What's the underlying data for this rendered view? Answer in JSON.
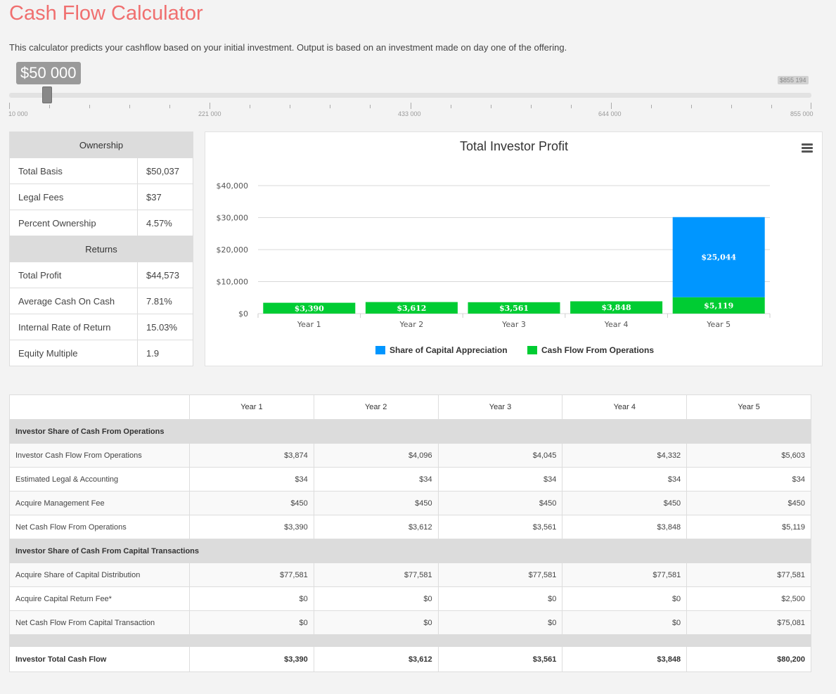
{
  "header": {
    "title": "Cash Flow Calculator",
    "intro": "This calculator predicts your cashflow based on your initial investment. Output is based on an investment made on day one of the offering."
  },
  "slider": {
    "value_label": "$50 000",
    "max_badge": "$855 194",
    "min": 10000,
    "max": 855000,
    "value": 50000,
    "tick_labels": [
      "10 000",
      "221 000",
      "433 000",
      "644 000",
      "855 000"
    ]
  },
  "ownership": {
    "ownership_heading": "Ownership",
    "returns_heading": "Returns",
    "rows": [
      {
        "label": "Total Basis",
        "value": "$50,037"
      },
      {
        "label": "Legal Fees",
        "value": "$37"
      },
      {
        "label": "Percent Ownership",
        "value": "4.57%"
      }
    ],
    "returns_rows": [
      {
        "label": "Total Profit",
        "value": "$44,573"
      },
      {
        "label": "Average Cash On Cash",
        "value": "7.81%"
      },
      {
        "label": "Internal Rate of Return",
        "value": "15.03%"
      },
      {
        "label": "Equity Multiple",
        "value": "1.9"
      }
    ]
  },
  "colors": {
    "title": "#f06f6f",
    "appreciation": "#0096ff",
    "cashflow": "#00cc33"
  },
  "chart_data": {
    "type": "bar",
    "title": "Total Investor Profit",
    "categories": [
      "Year 1",
      "Year 2",
      "Year 3",
      "Year 4",
      "Year 5"
    ],
    "stacked": true,
    "ylim": [
      0,
      40000
    ],
    "yticks": [
      0,
      10000,
      20000,
      30000,
      40000
    ],
    "ytick_labels": [
      "$0",
      "$10,000",
      "$20,000",
      "$30,000",
      "$40,000"
    ],
    "grid": true,
    "legend_position": "bottom",
    "series": [
      {
        "name": "Cash Flow From Operations",
        "values": [
          3390,
          3612,
          3561,
          3848,
          5119
        ],
        "labels": [
          "$3,390",
          "$3,612",
          "$3,561",
          "$3,848",
          "$5,119"
        ]
      },
      {
        "name": "Share of Capital Appreciation",
        "values": [
          0,
          0,
          0,
          0,
          25044
        ],
        "labels": [
          "",
          "",
          "",
          "",
          "$25,044"
        ]
      }
    ],
    "legend_order": [
      "Share of Capital Appreciation",
      "Cash Flow From Operations"
    ]
  },
  "cashflow_table": {
    "columns": [
      "",
      "Year 1",
      "Year 2",
      "Year 3",
      "Year 4",
      "Year 5"
    ],
    "sections": [
      {
        "title": "Investor Share of Cash From Operations",
        "rows": [
          {
            "label": "Investor Cash Flow From Operations",
            "values": [
              "$3,874",
              "$4,096",
              "$4,045",
              "$4,332",
              "$5,603"
            ]
          },
          {
            "label": "Estimated Legal & Accounting",
            "values": [
              "$34",
              "$34",
              "$34",
              "$34",
              "$34"
            ]
          },
          {
            "label": "Acquire Management Fee",
            "values": [
              "$450",
              "$450",
              "$450",
              "$450",
              "$450"
            ]
          },
          {
            "label": "Net Cash Flow From Operations",
            "values": [
              "$3,390",
              "$3,612",
              "$3,561",
              "$3,848",
              "$5,119"
            ]
          }
        ]
      },
      {
        "title": "Investor Share of Cash From Capital Transactions",
        "rows": [
          {
            "label": "Acquire Share of Capital Distribution",
            "values": [
              "$77,581",
              "$77,581",
              "$77,581",
              "$77,581",
              "$77,581"
            ]
          },
          {
            "label": "Acquire Capital Return Fee*",
            "values": [
              "$0",
              "$0",
              "$0",
              "$0",
              "$2,500"
            ]
          },
          {
            "label": "Net Cash Flow From Capital Transaction",
            "values": [
              "$0",
              "$0",
              "$0",
              "$0",
              "$75,081"
            ]
          }
        ]
      }
    ],
    "total": {
      "label": "Investor Total Cash Flow",
      "values": [
        "$3,390",
        "$3,612",
        "$3,561",
        "$3,848",
        "$80,200"
      ]
    }
  }
}
